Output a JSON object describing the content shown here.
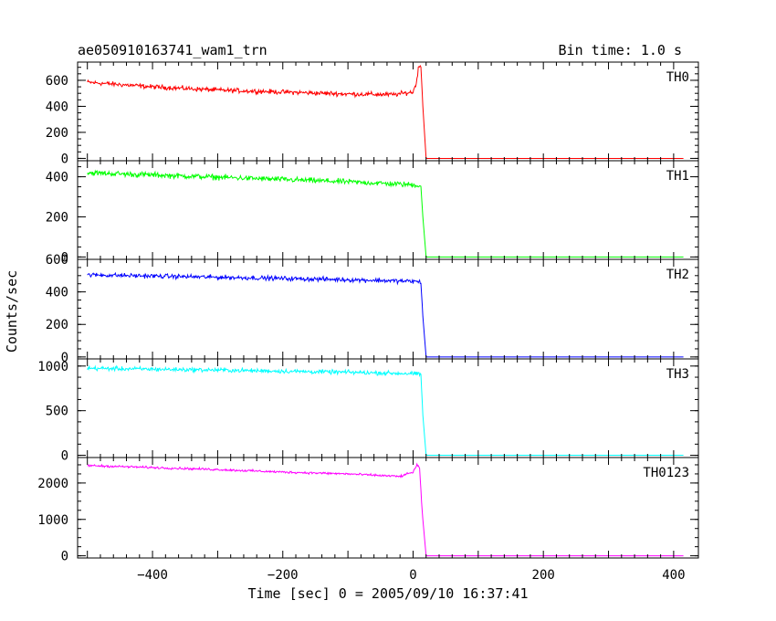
{
  "header": {
    "title": "ae050910163741_wam1_trn",
    "bin_time": "Bin time: 1.0 s"
  },
  "axes": {
    "xlabel": "Time [sec] 0 = 2005/09/10 16:37:41",
    "ylabel": "Counts/sec"
  },
  "chart_data": {
    "type": "line",
    "xlim": [
      -515,
      438
    ],
    "x_ticks": [
      -400,
      -200,
      0,
      200,
      400
    ],
    "x_tick_labels": [
      "−400",
      "−200",
      "0",
      "200",
      "400"
    ],
    "data_x_range": [
      -500,
      415
    ],
    "drop_time": 15,
    "panels": [
      {
        "name": "TH0",
        "color": "#ff0000",
        "ylim": [
          -18,
          740
        ],
        "y_ticks": [
          0,
          200,
          400,
          600
        ],
        "y_tick_labels": [
          "0",
          "200",
          "400",
          "600"
        ],
        "x": [
          -500,
          -400,
          -300,
          -200,
          -100,
          -30,
          0,
          5,
          8,
          12,
          15,
          20,
          415
        ],
        "values": [
          585,
          550,
          525,
          510,
          495,
          490,
          510,
          580,
          690,
          720,
          400,
          0,
          0
        ],
        "noise": 26
      },
      {
        "name": "TH1",
        "color": "#00ff00",
        "ylim": [
          -12,
          480
        ],
        "y_ticks": [
          0,
          200,
          400
        ],
        "y_tick_labels": [
          "0",
          "200",
          "400"
        ],
        "x": [
          -500,
          -300,
          -100,
          0,
          12,
          15,
          20,
          415
        ],
        "values": [
          420,
          398,
          375,
          360,
          355,
          200,
          0,
          0
        ],
        "noise": 20
      },
      {
        "name": "TH2",
        "color": "#0000ff",
        "ylim": [
          -12,
          600
        ],
        "y_ticks": [
          0,
          200,
          400,
          600
        ],
        "y_tick_labels": [
          "0",
          "200",
          "400",
          "600"
        ],
        "x": [
          -500,
          -300,
          -100,
          0,
          12,
          15,
          20,
          415
        ],
        "values": [
          505,
          490,
          475,
          465,
          460,
          250,
          0,
          0
        ],
        "noise": 20
      },
      {
        "name": "TH3",
        "color": "#00ffff",
        "ylim": [
          -25,
          1080
        ],
        "y_ticks": [
          0,
          500,
          1000
        ],
        "y_tick_labels": [
          "0",
          "500",
          "1000"
        ],
        "x": [
          -500,
          -300,
          -100,
          0,
          12,
          15,
          20,
          415
        ],
        "values": [
          975,
          955,
          930,
          915,
          905,
          450,
          0,
          0
        ],
        "noise": 35
      },
      {
        "name": "TH0123",
        "color": "#ff00ff",
        "ylim": [
          -60,
          2700
        ],
        "y_ticks": [
          0,
          1000,
          2000
        ],
        "y_tick_labels": [
          "0",
          "1000",
          "2000"
        ],
        "x": [
          -500,
          -300,
          -200,
          -100,
          -20,
          0,
          6,
          10,
          14,
          20,
          415
        ],
        "values": [
          2480,
          2370,
          2300,
          2250,
          2180,
          2300,
          2500,
          2400,
          1200,
          0,
          0
        ],
        "noise": 45
      }
    ]
  }
}
